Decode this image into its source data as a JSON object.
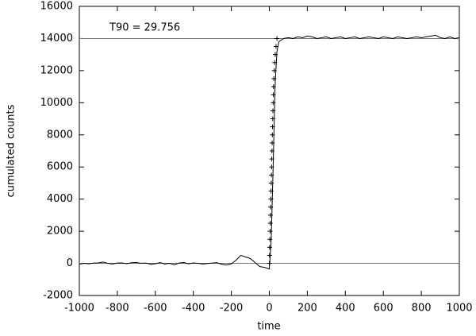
{
  "chart_data": {
    "type": "line",
    "xlabel": "time",
    "ylabel": "cumulated counts",
    "annotation": "T90 = 29.756",
    "xlim": [
      -1000,
      1000
    ],
    "xticks": [
      -1000,
      -800,
      -600,
      -400,
      -200,
      0,
      200,
      400,
      600,
      800,
      1000
    ],
    "ylim": [
      -2000,
      16000
    ],
    "yticks": [
      -2000,
      0,
      2000,
      4000,
      6000,
      8000,
      10000,
      12000,
      14000,
      16000
    ],
    "hlines": [
      0,
      14000
    ],
    "series": [
      {
        "color": "#000000",
        "marker": "none",
        "x": [
          -1000,
          -975,
          -950,
          -925,
          -900,
          -875,
          -850,
          -825,
          -800,
          -775,
          -750,
          -725,
          -700,
          -675,
          -650,
          -625,
          -600,
          -575,
          -550,
          -525,
          -500,
          -475,
          -450,
          -425,
          -400,
          -375,
          -350,
          -325,
          -300,
          -275,
          -250,
          -225,
          -200,
          -175,
          -150,
          -125,
          -100,
          -75,
          -50,
          -25,
          0,
          10,
          20,
          30,
          40,
          50,
          75,
          100,
          125,
          150,
          175,
          200,
          225,
          250,
          275,
          300,
          325,
          350,
          375,
          400,
          425,
          450,
          475,
          500,
          525,
          550,
          575,
          600,
          625,
          650,
          675,
          700,
          725,
          750,
          775,
          800,
          825,
          850,
          875,
          900,
          925,
          950,
          975,
          1000
        ],
        "values": [
          -50,
          0,
          -30,
          20,
          30,
          80,
          0,
          -40,
          20,
          30,
          -20,
          40,
          60,
          0,
          20,
          -50,
          -30,
          50,
          -40,
          0,
          -80,
          20,
          50,
          -30,
          30,
          0,
          -40,
          -10,
          20,
          40,
          -60,
          -100,
          -30,
          200,
          500,
          400,
          300,
          50,
          -200,
          -250,
          -350,
          1500,
          6000,
          11000,
          13200,
          13800,
          14000,
          14050,
          14000,
          14100,
          14050,
          14150,
          14100,
          14000,
          14050,
          14100,
          14000,
          14050,
          14100,
          14000,
          14050,
          14100,
          14000,
          14050,
          14100,
          14050,
          14000,
          14100,
          14050,
          14000,
          14100,
          14050,
          14000,
          14050,
          14100,
          14050,
          14100,
          14150,
          14200,
          14050,
          14000,
          14100,
          14000,
          14050
        ]
      },
      {
        "color": "#000000",
        "marker": "+",
        "x": [
          0,
          1,
          2,
          3,
          4,
          5,
          6,
          7,
          8,
          9,
          10,
          11,
          12,
          13,
          14,
          15,
          16,
          17,
          18,
          19,
          20,
          21,
          22,
          24,
          26,
          28,
          31,
          35,
          40
        ],
        "values": [
          0,
          500,
          1000,
          1500,
          2000,
          2500,
          3000,
          3500,
          4000,
          4500,
          5000,
          5500,
          6000,
          6500,
          7000,
          7500,
          8000,
          8500,
          9000,
          9500,
          10000,
          10500,
          11000,
          11500,
          12000,
          12500,
          13000,
          13500,
          14000
        ]
      }
    ]
  }
}
